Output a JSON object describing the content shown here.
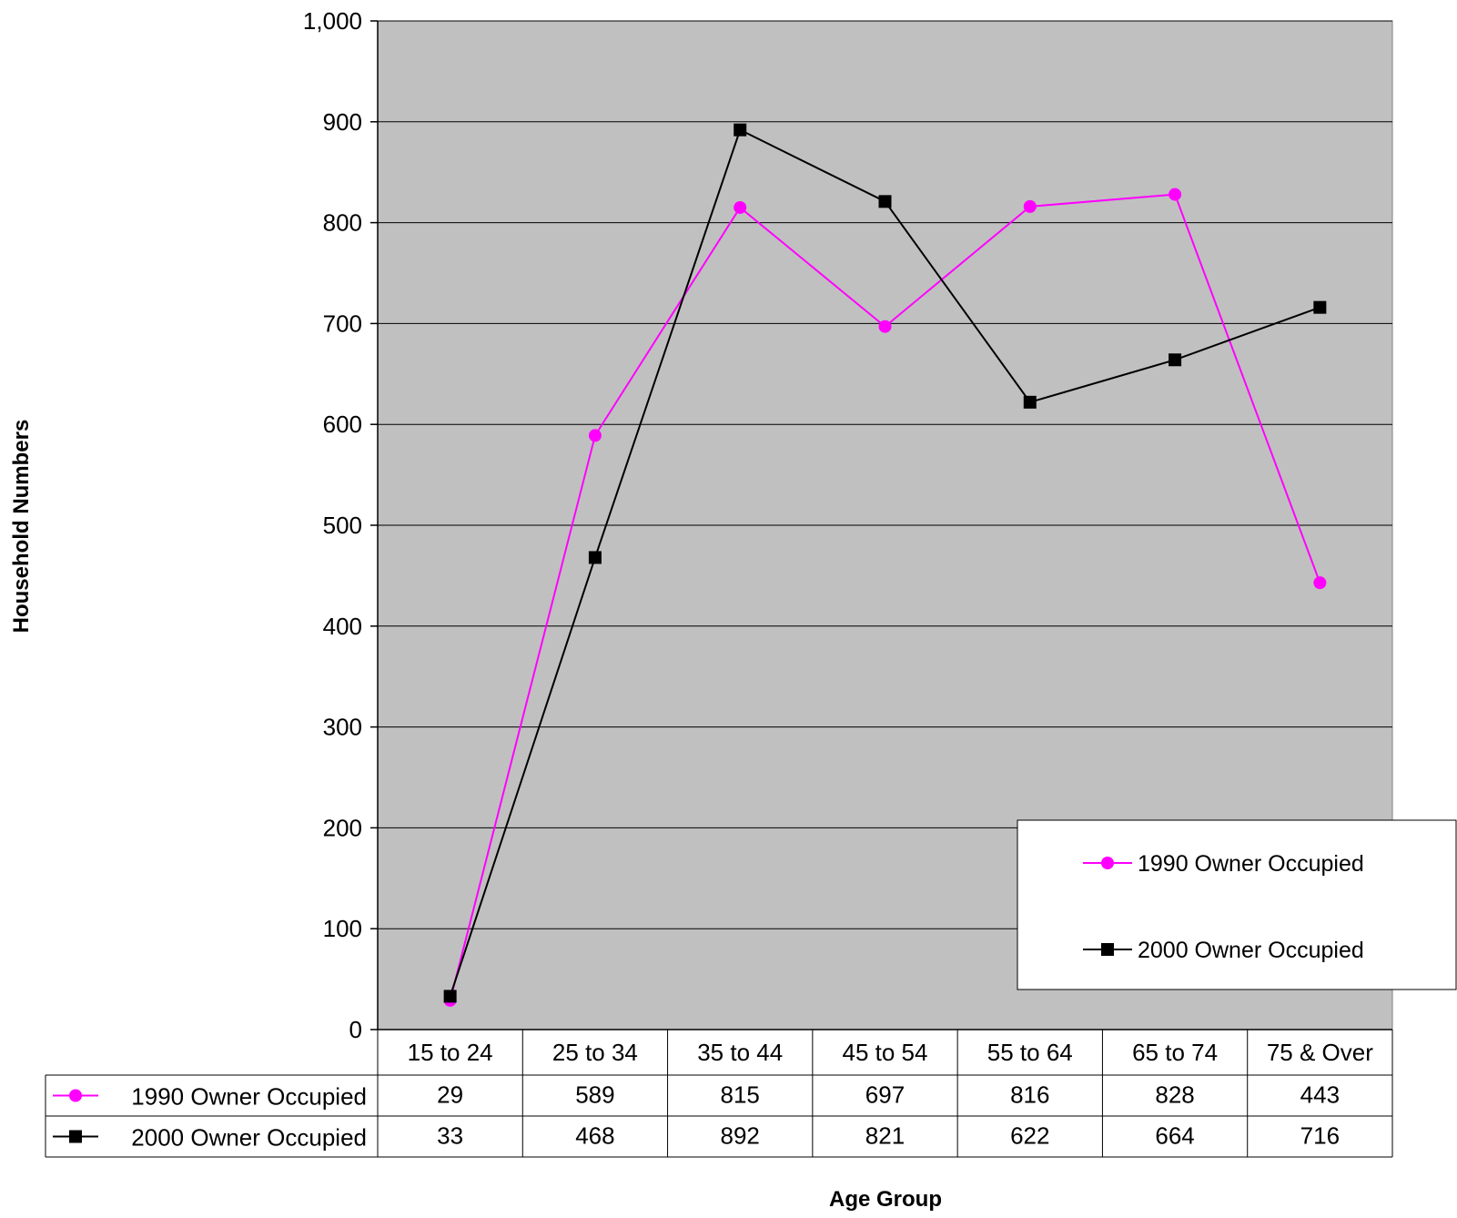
{
  "chart_data": {
    "type": "line",
    "title": "",
    "xlabel": "Age Group",
    "ylabel": "Household Numbers",
    "ylim": [
      0,
      1000
    ],
    "yticks": [
      0,
      100,
      200,
      300,
      400,
      500,
      600,
      700,
      800,
      900,
      1000
    ],
    "ytick_labels": [
      "0",
      "100",
      "200",
      "300",
      "400",
      "500",
      "600",
      "700",
      "800",
      "900",
      "1,000"
    ],
    "grid": true,
    "legend_position": "bottom-right",
    "data_table": true,
    "categories": [
      "15 to 24",
      "25 to 34",
      "35 to 44",
      "45 to 54",
      "55 to 64",
      "65 to 74",
      "75 & Over"
    ],
    "series": [
      {
        "name": "1990 Owner Occupied",
        "values": [
          29,
          589,
          815,
          697,
          816,
          828,
          443
        ],
        "color": "#ff00ff",
        "marker": "circle"
      },
      {
        "name": "2000 Owner Occupied",
        "values": [
          33,
          468,
          892,
          821,
          622,
          664,
          716
        ],
        "color": "#000000",
        "marker": "square"
      }
    ],
    "colors": {
      "plot_background": "#c0c0c0",
      "gridline": "#000000"
    }
  }
}
